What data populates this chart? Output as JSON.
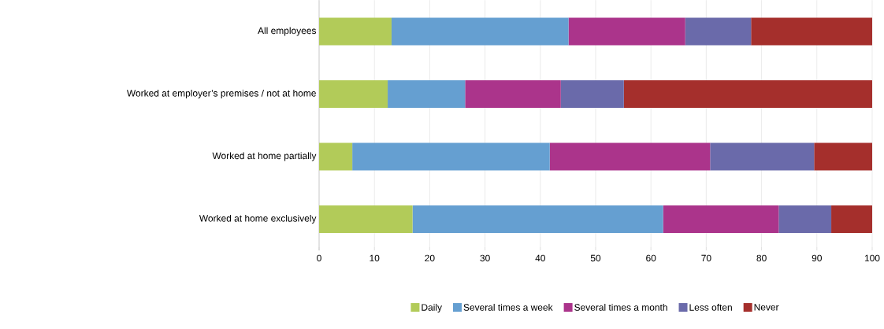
{
  "chart_data": {
    "type": "bar",
    "orientation": "horizontal",
    "stacked": true,
    "categories": [
      "All employees",
      "Worked at employer’s premises / not at home",
      "Worked at home partially",
      "Worked at home exclusively"
    ],
    "series": [
      {
        "name": "Daily",
        "color": "#b2cb59",
        "values": [
          13.1,
          12.4,
          6.0,
          16.9
        ]
      },
      {
        "name": "Several times a week",
        "color": "#659fd1",
        "values": [
          32.0,
          14.0,
          35.7,
          45.3
        ]
      },
      {
        "name": "Several times a month",
        "color": "#ab348b",
        "values": [
          21.1,
          17.3,
          29.0,
          20.9
        ]
      },
      {
        "name": "Less often",
        "color": "#6a6aaa",
        "values": [
          11.9,
          11.4,
          18.8,
          9.5
        ]
      },
      {
        "name": "Never",
        "color": "#a52f2c",
        "values": [
          21.9,
          44.9,
          10.5,
          7.4
        ]
      }
    ],
    "xlim": [
      0,
      100
    ],
    "xticks": [
      0,
      10,
      20,
      30,
      40,
      50,
      60,
      70,
      80,
      90,
      100
    ],
    "grid": "x",
    "legend": "bottom"
  }
}
